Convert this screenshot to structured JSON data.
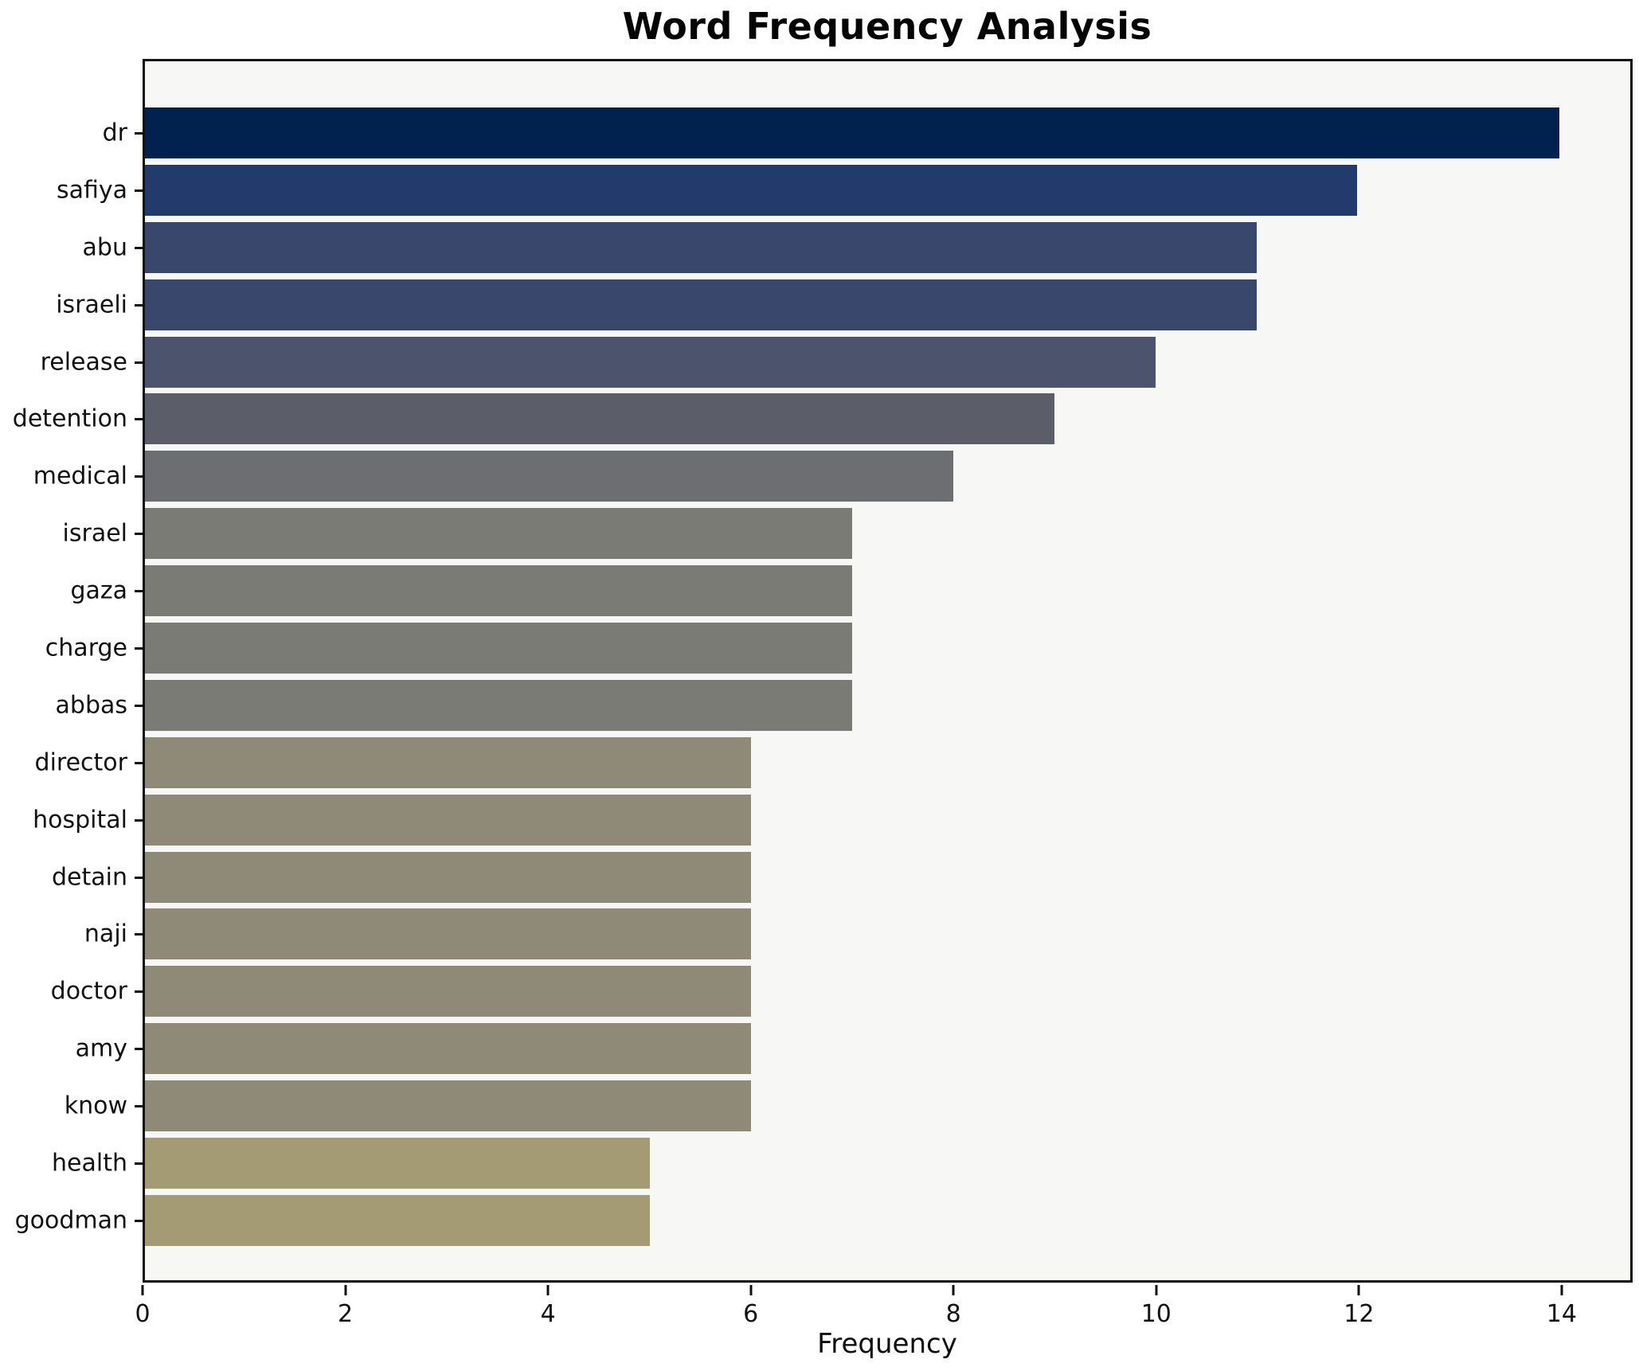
{
  "chart_data": {
    "type": "bar",
    "orientation": "horizontal",
    "title": "Word Frequency Analysis",
    "xlabel": "Frequency",
    "ylabel": "",
    "categories": [
      "dr",
      "safiya",
      "abu",
      "israeli",
      "release",
      "detention",
      "medical",
      "israel",
      "gaza",
      "charge",
      "abbas",
      "director",
      "hospital",
      "detain",
      "naji",
      "doctor",
      "amy",
      "know",
      "health",
      "goodman"
    ],
    "values": [
      14,
      12,
      11,
      11,
      10,
      9,
      8,
      7,
      7,
      7,
      7,
      6,
      6,
      6,
      6,
      6,
      6,
      6,
      5,
      5
    ],
    "bar_colors": [
      "#01214e",
      "#233a6c",
      "#3a476c",
      "#3a476c",
      "#4c536d",
      "#5b5e69",
      "#6c6e71",
      "#7b7b75",
      "#7b7b75",
      "#7b7b75",
      "#7b7b75",
      "#8f8a78",
      "#8f8a78",
      "#8f8a78",
      "#8f8a78",
      "#8f8a78",
      "#8f8a78",
      "#8f8a78",
      "#a49b75",
      "#a49b75"
    ],
    "xlim": [
      0,
      14.7
    ],
    "x_ticks": [
      0,
      2,
      4,
      6,
      8,
      10,
      12,
      14
    ],
    "grid": false,
    "legend": "none",
    "plot_bg_color": "#f7f7f6",
    "figure_bg_color": "#ffffff",
    "spine_color": "#0f0f0f",
    "text_color": "#111111"
  }
}
